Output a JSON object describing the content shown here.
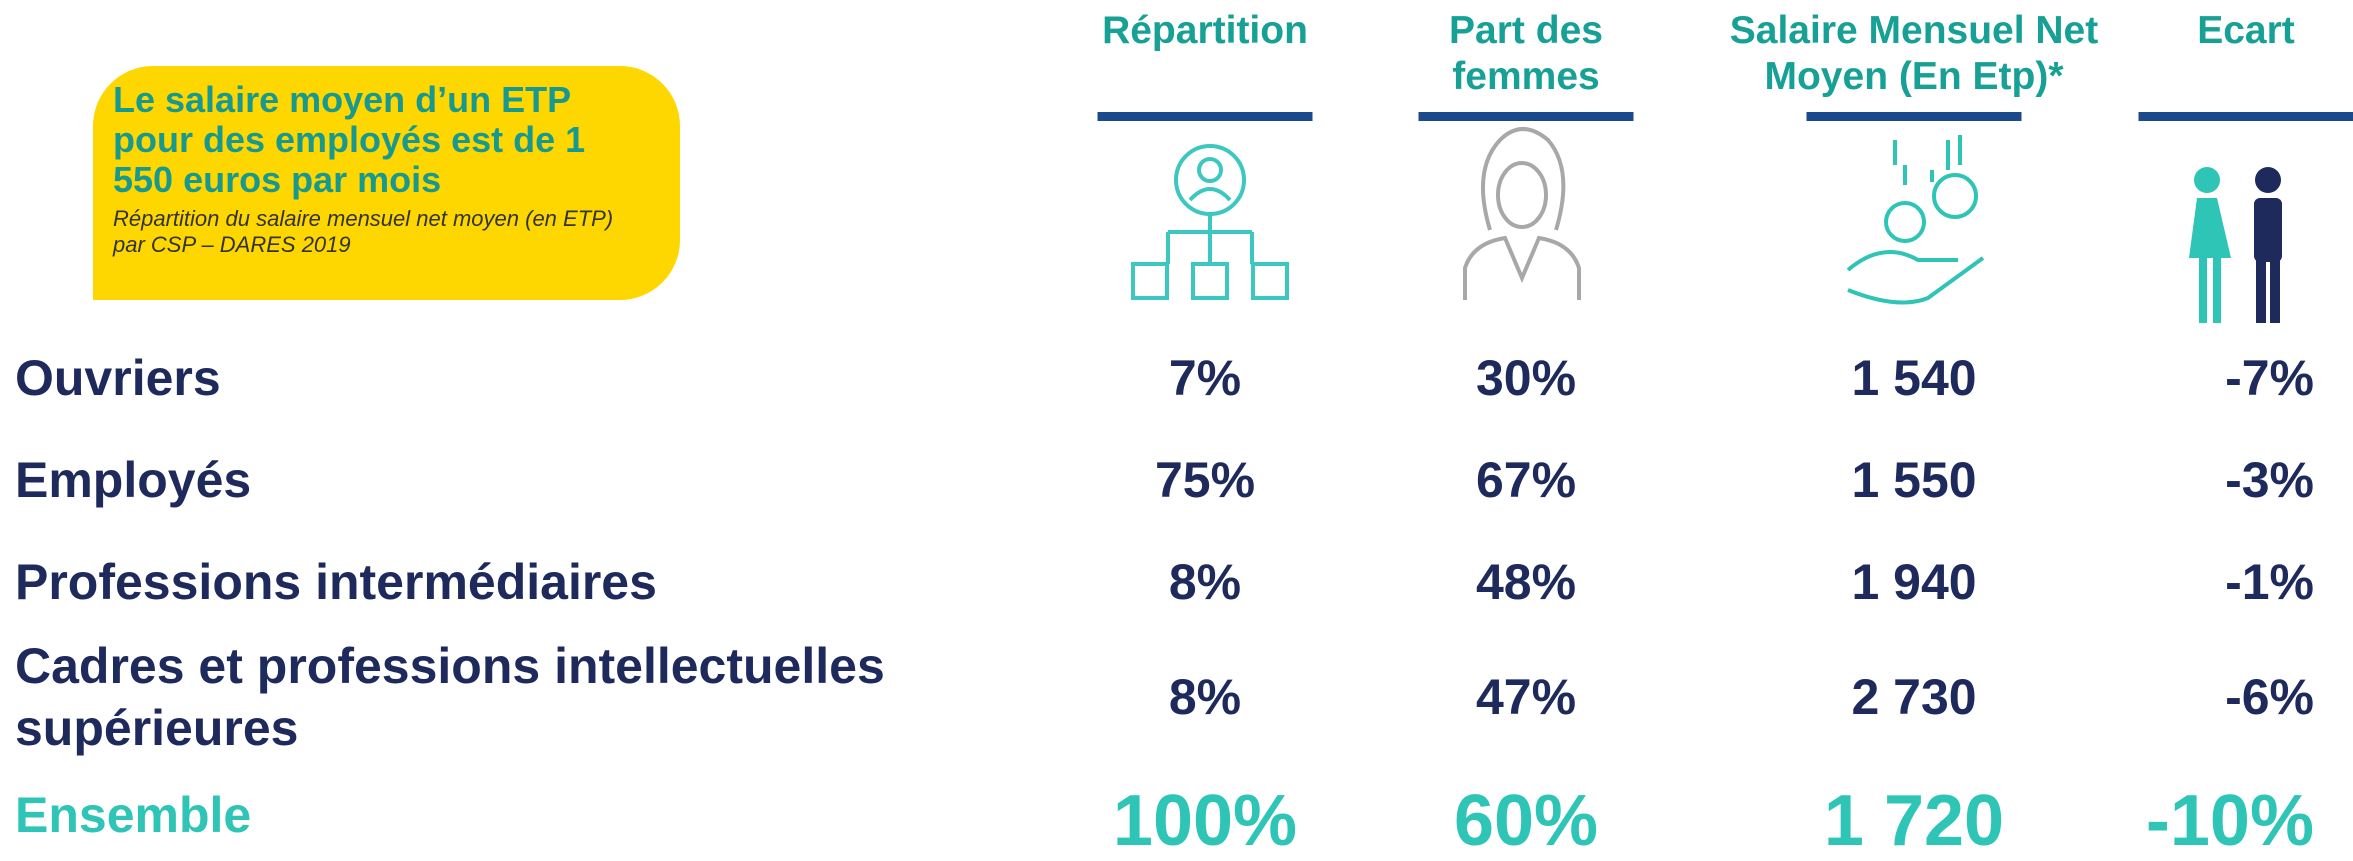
{
  "callout": {
    "title": "Le salaire moyen d’un ETP pour des employés est de 1 550 euros par mois",
    "subtitle": "Répartition du salaire mensuel net moyen (en ETP) par CSP – DARES 2019"
  },
  "table": {
    "headers": [
      "Répartition",
      "Part des femmes",
      "Salaire Mensuel Net Moyen (En Etp)*",
      "Ecart"
    ],
    "rows": [
      [
        "Ouvriers",
        "7%",
        "30%",
        "1 540",
        "-7%"
      ],
      [
        "Employés",
        "75%",
        "67%",
        "1 550",
        "-3%"
      ],
      [
        "Professions intermédiaires",
        "8%",
        "48%",
        "1 940",
        "-1%"
      ],
      [
        "Cadres et professions intellectuelles supérieures",
        "8%",
        "47%",
        "2 730",
        "-6%"
      ],
      [
        "Ensemble",
        "100%",
        "60%",
        "1 720",
        "-10%"
      ]
    ]
  }
}
